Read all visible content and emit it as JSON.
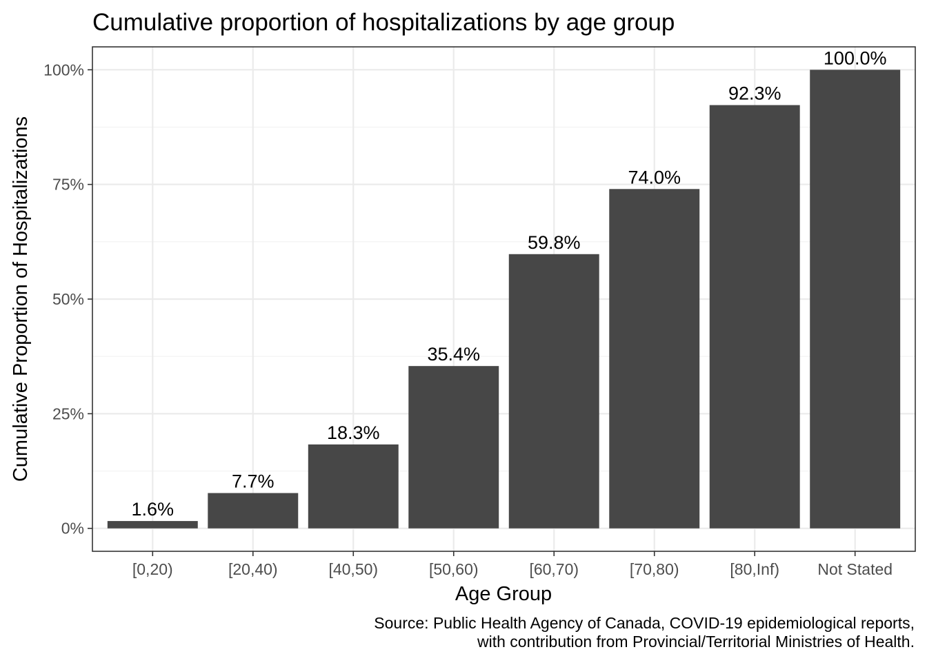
{
  "chart_data": {
    "type": "bar",
    "title": "Cumulative proportion of hospitalizations by age group",
    "xlabel": "Age Group",
    "ylabel": "Cumulative Proportion of Hospitalizations",
    "categories": [
      "[0,20)",
      "[20,40)",
      "[40,50)",
      "[50,60)",
      "[60,70)",
      "[70,80)",
      "[80,Inf)",
      "Not Stated"
    ],
    "values": [
      1.6,
      7.7,
      18.3,
      35.4,
      59.8,
      74.0,
      92.3,
      100.0
    ],
    "value_labels": [
      "1.6%",
      "7.7%",
      "18.3%",
      "35.4%",
      "59.8%",
      "74.0%",
      "92.3%",
      "100.0%"
    ],
    "y_ticks": [
      0,
      25,
      50,
      75,
      100
    ],
    "y_tick_labels": [
      "0%",
      "25%",
      "50%",
      "75%",
      "100%"
    ],
    "ylim": [
      -5,
      105
    ],
    "grid": true,
    "legend": "none",
    "bar_color": "#474747",
    "caption": [
      "Source: Public Health Agency of Canada, COVID-19 epidemiological reports,",
      "with contribution from Provincial/Territorial Ministries of Health."
    ]
  }
}
